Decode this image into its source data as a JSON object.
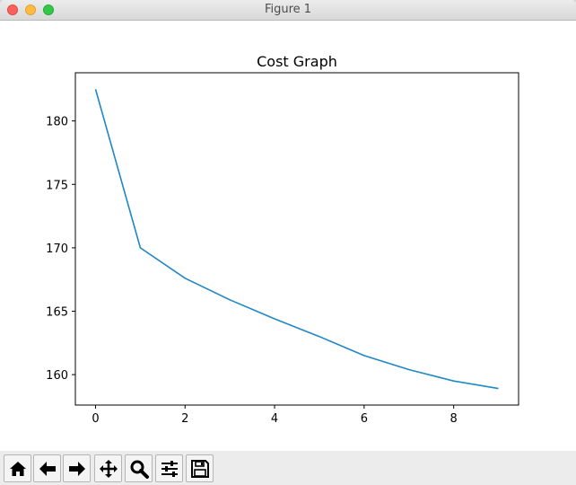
{
  "window": {
    "title": "Figure 1"
  },
  "chart_data": {
    "type": "line",
    "title": "Cost Graph",
    "xlabel": "",
    "ylabel": "",
    "xlim": [
      -0.45,
      9.45
    ],
    "ylim": [
      157.6,
      183.8
    ],
    "x_ticks": [
      0,
      2,
      4,
      6,
      8
    ],
    "y_ticks": [
      160,
      165,
      170,
      175,
      180
    ],
    "grid": false,
    "series": [
      {
        "x": [
          0,
          1,
          2,
          3,
          4,
          5,
          6,
          7,
          8,
          9
        ],
        "values": [
          182.5,
          170.0,
          167.6,
          165.9,
          164.4,
          163.0,
          161.5,
          160.4,
          159.5,
          158.9
        ],
        "color": "#1f87c4"
      }
    ]
  },
  "toolbar": {
    "buttons": [
      {
        "name": "home-button",
        "icon": "home-icon"
      },
      {
        "name": "back-button",
        "icon": "arrow-left-icon"
      },
      {
        "name": "forward-button",
        "icon": "arrow-right-icon"
      },
      {
        "name": "pan-button",
        "icon": "move-icon"
      },
      {
        "name": "zoom-button",
        "icon": "search-icon"
      },
      {
        "name": "configure-subplots-button",
        "icon": "sliders-icon"
      },
      {
        "name": "save-button",
        "icon": "save-icon"
      }
    ]
  }
}
